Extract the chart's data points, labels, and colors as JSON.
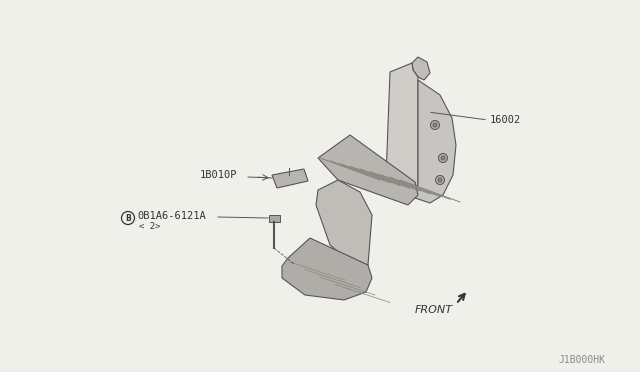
{
  "bg_color": "#f0f0eb",
  "line_color": "#555555",
  "text_color": "#333333",
  "watermark": "J1B000HK",
  "label_16002": "16002",
  "label_1B010P": "1B010P",
  "label_bolt": "0B1A6-6121A",
  "label_bolt_sub": "< 2>",
  "label_front": "FRONT",
  "fig_width": 6.4,
  "fig_height": 3.72,
  "dpi": 100
}
